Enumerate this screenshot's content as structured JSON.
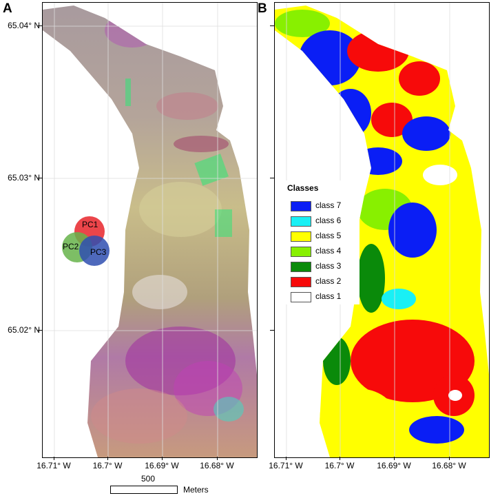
{
  "panels": {
    "left": {
      "letter": "A",
      "lat_ticks": [
        "65.04° N",
        "65.03° N",
        "65.02° N"
      ],
      "lon_ticks": [
        "16.71° W",
        "16.7° W",
        "16.69° W",
        "16.68° W"
      ]
    },
    "right": {
      "letter": "B",
      "lon_ticks": [
        "16.71° W",
        "16.7° W",
        "16.69° W",
        "16.68° W"
      ]
    }
  },
  "pc_venn": {
    "labels": [
      "PC1",
      "PC2",
      "PC3"
    ],
    "colors": [
      "#e8242a",
      "#66b34a",
      "#2f4fb0"
    ],
    "overlaps": {
      "pc1_pc2": "#f6e81e",
      "pc1_pc3": "#e0407f",
      "pc2_pc3": "#1cc0de",
      "center": "#ffffff"
    }
  },
  "legend": {
    "title": "Classes",
    "items": [
      {
        "label": "class 7",
        "color": "#0a1ef5"
      },
      {
        "label": "class 6",
        "color": "#19f0f5"
      },
      {
        "label": "class 5",
        "color": "#ffff00"
      },
      {
        "label": "class 4",
        "color": "#88f000"
      },
      {
        "label": "class 3",
        "color": "#0a8a0a"
      },
      {
        "label": "class 2",
        "color": "#f70a0a"
      },
      {
        "label": "class 1",
        "color": "#ffffff"
      }
    ]
  },
  "scale_bar": {
    "value": "500",
    "unit": "Meters"
  }
}
